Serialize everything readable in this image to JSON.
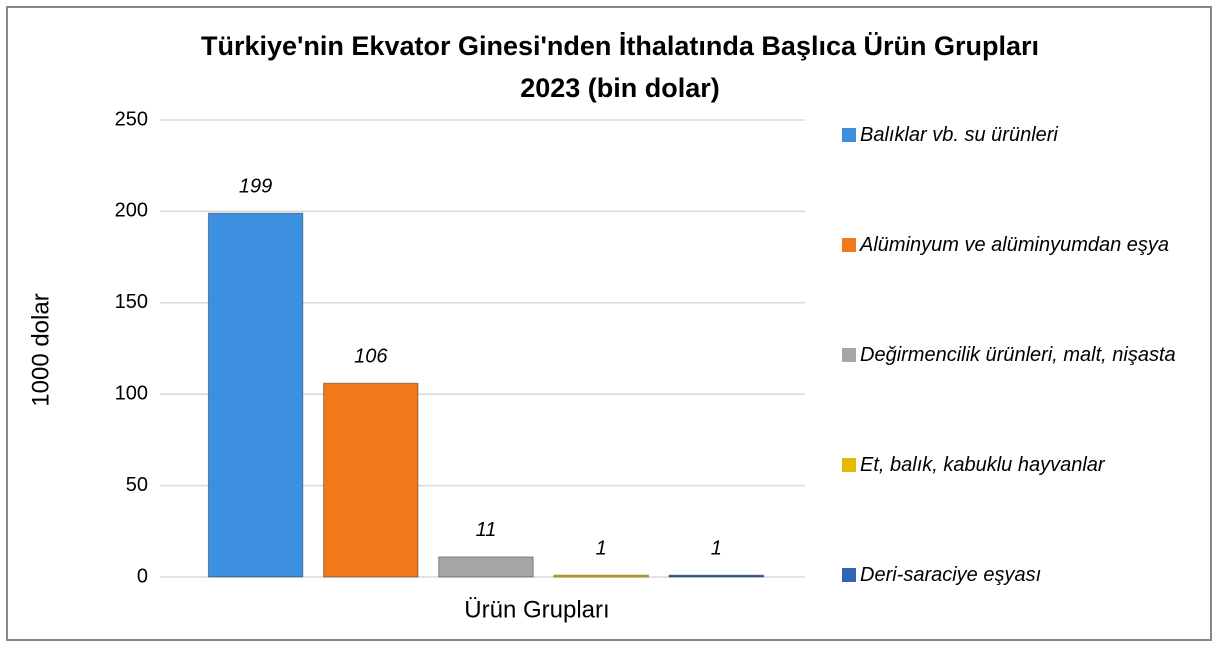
{
  "chart_data": {
    "type": "bar",
    "title": [
      "Türkiye'nin Ekvator Ginesi'nden İthalatında Başlıca Ürün Grupları",
      "2023 (bin dolar)"
    ],
    "x_label": "Ürün Grupları",
    "y_label": "1000 dolar",
    "categories": [
      null
    ],
    "series": [
      {
        "name": "Balıklar vb. su ürünleri",
        "color": "#3d8fe0",
        "values": [
          199
        ]
      },
      {
        "name": "Alüminyum ve alüminyumdan eşya",
        "color": "#f07a1a",
        "values": [
          106
        ]
      },
      {
        "name": "Değirmencilik ürünleri, malt, nişasta",
        "color": "#a6a6a6",
        "values": [
          11
        ]
      },
      {
        "name": "Et, balık, kabuklu hayvanlar",
        "color": "#e6b800",
        "values": [
          1
        ]
      },
      {
        "name": "Deri-saraciye eşyası",
        "color": "#3264b4",
        "values": [
          1
        ]
      }
    ],
    "ylim": [
      0,
      250
    ],
    "yticks": [
      0,
      50,
      100,
      150,
      200,
      250
    ],
    "grid": true,
    "legend": "right"
  }
}
